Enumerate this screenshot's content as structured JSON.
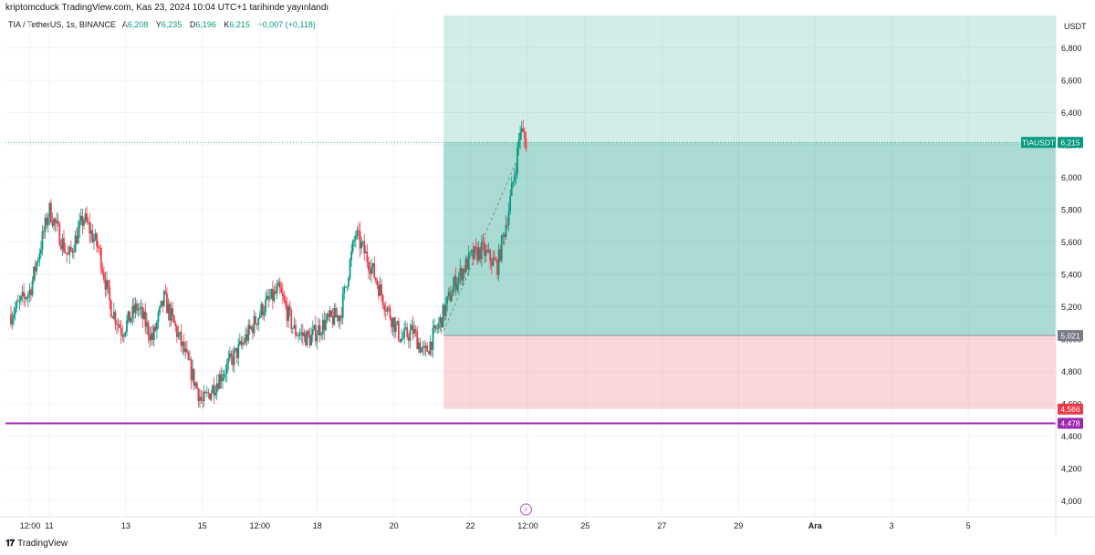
{
  "header": {
    "published": "kriptomcduck TradingView.com, Kas 23, 2024 10:04 UTC+1 tarihinde yayınlandı"
  },
  "symbol_bar": {
    "symbol": "TIA / TetherUS, 1s, BINANCE",
    "open_label": "A",
    "open": "6,208",
    "high_label": "Y",
    "high": "6,235",
    "low_label": "D",
    "low": "6,196",
    "close_label": "K",
    "close": "6,215",
    "change": "+0,007 (+0,118)"
  },
  "footer": {
    "brand": "TradingView"
  },
  "icons": {
    "event": "lightning-icon",
    "brand": "tradingview-logo-icon"
  },
  "colors": {
    "up": "#089981",
    "down": "#f23645",
    "support": "#9c27b0",
    "profit_zone": "#089981",
    "loss_zone": "#f23645"
  },
  "chart_data": {
    "type": "candlestick",
    "y_unit": "USDT",
    "ylim": [
      3.9,
      7.0
    ],
    "yticks": [
      4.0,
      4.2,
      4.4,
      4.6,
      4.8,
      5.0,
      5.2,
      5.4,
      5.6,
      5.8,
      6.0,
      6.2,
      6.4,
      6.6,
      6.8
    ],
    "ytick_labels": [
      "4,000",
      "4,200",
      "4,400",
      "4,600",
      "4,800",
      "5,000",
      "5,200",
      "5,400",
      "5,600",
      "5,800",
      "6,000",
      "6,200",
      "6,400",
      "6,600",
      "6,800"
    ],
    "x_ticks": [
      "12:00",
      "11",
      "13",
      "15",
      "12:00",
      "18",
      "20",
      "22",
      "12:00",
      "25",
      "27",
      "29",
      "Ara",
      "3",
      "5"
    ],
    "x_tick_days": [
      10.5,
      11,
      13,
      15,
      16.5,
      18,
      20,
      22,
      23.5,
      25,
      27,
      29,
      31,
      33,
      35
    ],
    "x_range_days": [
      10.0,
      37.0
    ],
    "price_path": [
      [
        10.0,
        5.15
      ],
      [
        10.5,
        5.3
      ],
      [
        11.0,
        5.8
      ],
      [
        11.5,
        5.5
      ],
      [
        11.9,
        5.75
      ],
      [
        12.3,
        5.55
      ],
      [
        12.6,
        5.2
      ],
      [
        12.9,
        5.05
      ],
      [
        13.3,
        5.2
      ],
      [
        13.7,
        5.0
      ],
      [
        14.0,
        5.25
      ],
      [
        14.4,
        5.0
      ],
      [
        14.7,
        4.8
      ],
      [
        15.0,
        4.6
      ],
      [
        15.5,
        4.78
      ],
      [
        16.0,
        4.95
      ],
      [
        16.6,
        5.2
      ],
      [
        17.0,
        5.3
      ],
      [
        17.4,
        5.05
      ],
      [
        17.8,
        5.0
      ],
      [
        18.2,
        5.1
      ],
      [
        18.6,
        5.15
      ],
      [
        19.0,
        5.65
      ],
      [
        19.4,
        5.45
      ],
      [
        19.8,
        5.2
      ],
      [
        20.2,
        5.0
      ],
      [
        20.5,
        5.05
      ],
      [
        20.8,
        4.9
      ],
      [
        21.2,
        5.1
      ],
      [
        21.6,
        5.35
      ],
      [
        22.0,
        5.5
      ],
      [
        22.3,
        5.55
      ],
      [
        22.7,
        5.45
      ],
      [
        23.0,
        5.8
      ],
      [
        23.2,
        6.1
      ],
      [
        23.3,
        6.3
      ],
      [
        23.45,
        6.215
      ]
    ],
    "series": [
      {
        "name": "TIAUSDT",
        "last": 6.215,
        "label": "6,215"
      }
    ],
    "position_tool": {
      "entry": 5.021,
      "entry_label": "5,021",
      "target": 7.0,
      "stop": 4.566,
      "stop_label": "4,566",
      "start_day": 21.3
    },
    "support_line": {
      "value": 4.478,
      "label": "4,478"
    },
    "event_marker_day": 23.45
  }
}
